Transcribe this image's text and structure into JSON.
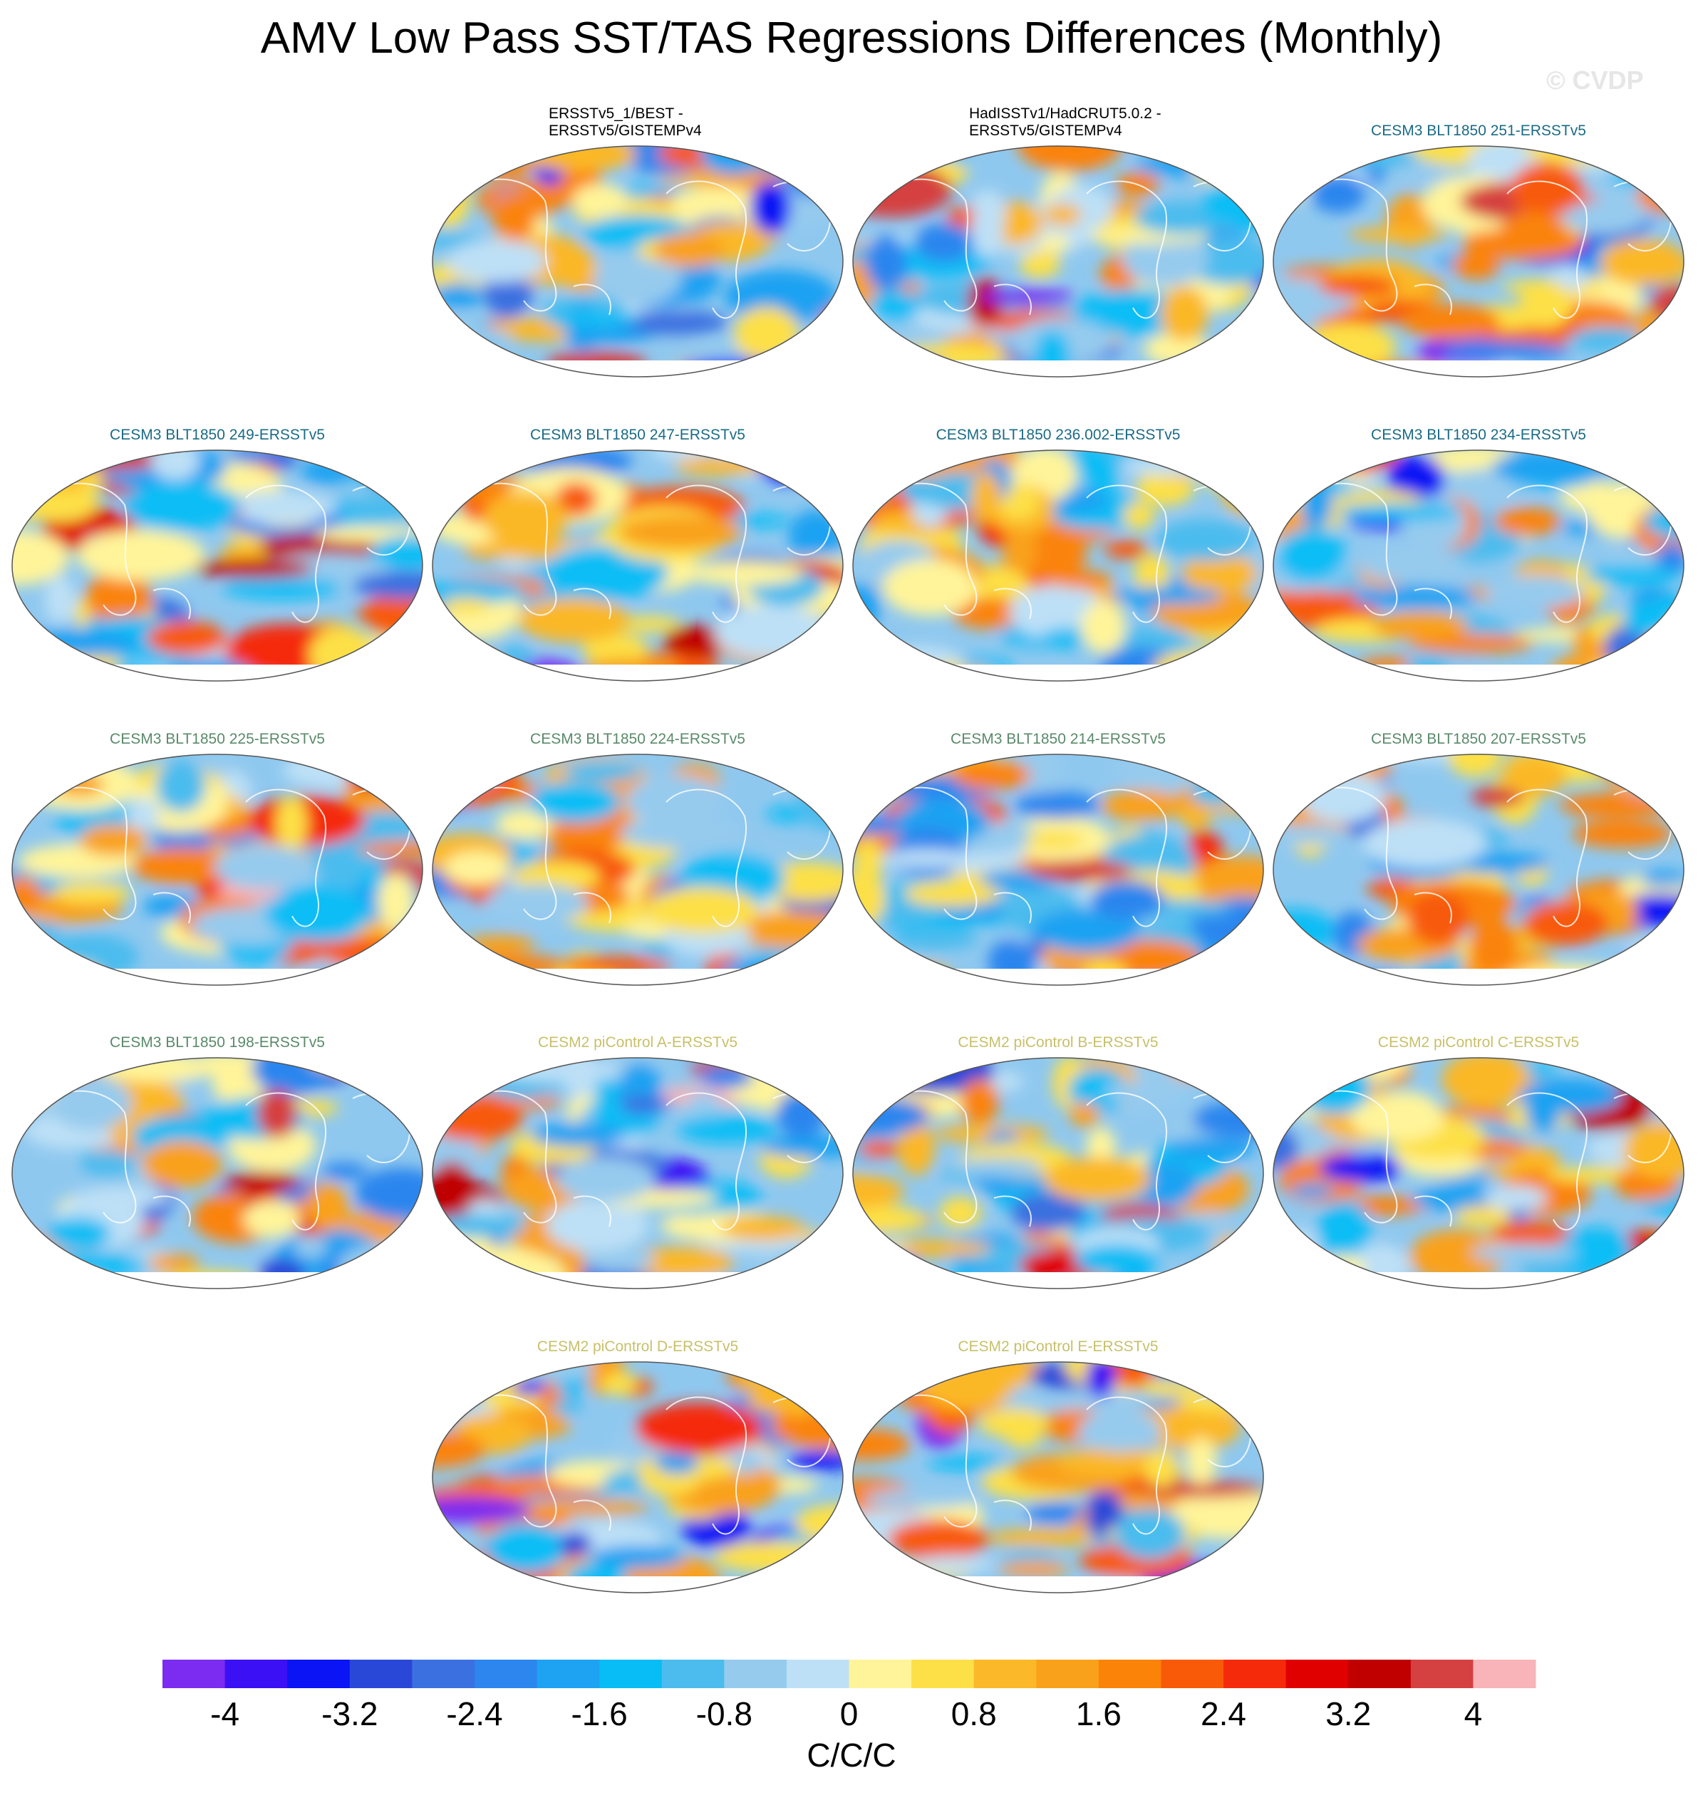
{
  "title": "AMV Low Pass SST/TAS Regressions Differences (Monthly)",
  "watermark": "© CVDP",
  "colors": {
    "obs_title": "#000000",
    "cesm3_teal": "#1a6b85",
    "cesm3_green": "#5a8a6a",
    "cesm2_olive": "#c8c06a"
  },
  "panels": [
    {
      "title": "ERSSTv5_1/BEST -\nERSSTv5/GISTEMPv4",
      "group": "obs",
      "seed": 11
    },
    {
      "title": "HadISSTv1/HadCRUT5.0.2 -\nERSSTv5/GISTEMPv4",
      "group": "obs",
      "seed": 23
    },
    {
      "title": "CESM3 BLT1850 251-ERSSTv5",
      "group": "cesm3a",
      "seed": 37
    },
    {
      "title": "CESM3 BLT1850 249-ERSSTv5",
      "group": "cesm3a",
      "seed": 41
    },
    {
      "title": "CESM3 BLT1850 247-ERSSTv5",
      "group": "cesm3a",
      "seed": 53
    },
    {
      "title": "CESM3 BLT1850 236.002-ERSSTv5",
      "group": "cesm3a",
      "seed": 67
    },
    {
      "title": "CESM3 BLT1850 234-ERSSTv5",
      "group": "cesm3a",
      "seed": 71
    },
    {
      "title": "CESM3 BLT1850 225-ERSSTv5",
      "group": "cesm3b",
      "seed": 83
    },
    {
      "title": "CESM3 BLT1850 224-ERSSTv5",
      "group": "cesm3b",
      "seed": 97
    },
    {
      "title": "CESM3 BLT1850 214-ERSSTv5",
      "group": "cesm3b",
      "seed": 101
    },
    {
      "title": "CESM3 BLT1850 207-ERSSTv5",
      "group": "cesm3b",
      "seed": 113
    },
    {
      "title": "CESM3 BLT1850 198-ERSSTv5",
      "group": "cesm3b",
      "seed": 127
    },
    {
      "title": "CESM2 piControl A-ERSSTv5",
      "group": "cesm2",
      "seed": 131
    },
    {
      "title": "CESM2 piControl B-ERSSTv5",
      "group": "cesm2",
      "seed": 149
    },
    {
      "title": "CESM2 piControl C-ERSSTv5",
      "group": "cesm2",
      "seed": 157
    },
    {
      "title": "CESM2 piControl D-ERSSTv5",
      "group": "cesm2",
      "seed": 163
    },
    {
      "title": "CESM2 piControl E-ERSSTv5",
      "group": "cesm2",
      "seed": 173
    }
  ],
  "colorbar": {
    "levels": [
      -4.4,
      -4,
      -3.6,
      -3.2,
      -2.8,
      -2.4,
      -2,
      -1.6,
      -1.2,
      -0.8,
      -0.4,
      0,
      0.4,
      0.8,
      1.2,
      1.6,
      2,
      2.4,
      2.8,
      3.2,
      3.6,
      4,
      4.4
    ],
    "colors": [
      "#7b2cf0",
      "#3c10f5",
      "#0a14f5",
      "#2a48d8",
      "#3b70e0",
      "#2c86ee",
      "#1ea2f2",
      "#08bdf5",
      "#4cbcee",
      "#96cbee",
      "#bde0f6",
      "#fff49a",
      "#fde047",
      "#fbb828",
      "#f9a11a",
      "#fa8308",
      "#f85a08",
      "#f52a0a",
      "#e00000",
      "#c00000",
      "#d54040",
      "#f8b4b8"
    ],
    "tick_labels": [
      "-4",
      "-3.2",
      "-2.4",
      "-1.6",
      "-0.8",
      "0",
      "0.8",
      "1.6",
      "2.4",
      "3.2",
      "4"
    ],
    "units": "C/C/C"
  },
  "chart_data": {
    "type": "heatmap",
    "title": "AMV Low Pass SST/TAS Regressions Differences (Monthly)",
    "projection": "global map panels (17)",
    "value_range": [
      -4.4,
      4.4
    ],
    "contour_interval": 0.4,
    "units": "C/C/C",
    "series": [
      {
        "name": "ERSSTv5_1/BEST - ERSSTv5/GISTEMPv4"
      },
      {
        "name": "HadISSTv1/HadCRUT5.0.2 - ERSSTv5/GISTEMPv4"
      },
      {
        "name": "CESM3 BLT1850 251-ERSSTv5"
      },
      {
        "name": "CESM3 BLT1850 249-ERSSTv5"
      },
      {
        "name": "CESM3 BLT1850 247-ERSSTv5"
      },
      {
        "name": "CESM3 BLT1850 236.002-ERSSTv5"
      },
      {
        "name": "CESM3 BLT1850 234-ERSSTv5"
      },
      {
        "name": "CESM3 BLT1850 225-ERSSTv5"
      },
      {
        "name": "CESM3 BLT1850 224-ERSSTv5"
      },
      {
        "name": "CESM3 BLT1850 214-ERSSTv5"
      },
      {
        "name": "CESM3 BLT1850 207-ERSSTv5"
      },
      {
        "name": "CESM3 BLT1850 198-ERSSTv5"
      },
      {
        "name": "CESM2 piControl A-ERSSTv5"
      },
      {
        "name": "CESM2 piControl B-ERSSTv5"
      },
      {
        "name": "CESM2 piControl C-ERSSTv5"
      },
      {
        "name": "CESM2 piControl D-ERSSTv5"
      },
      {
        "name": "CESM2 piControl E-ERSSTv5"
      }
    ]
  }
}
